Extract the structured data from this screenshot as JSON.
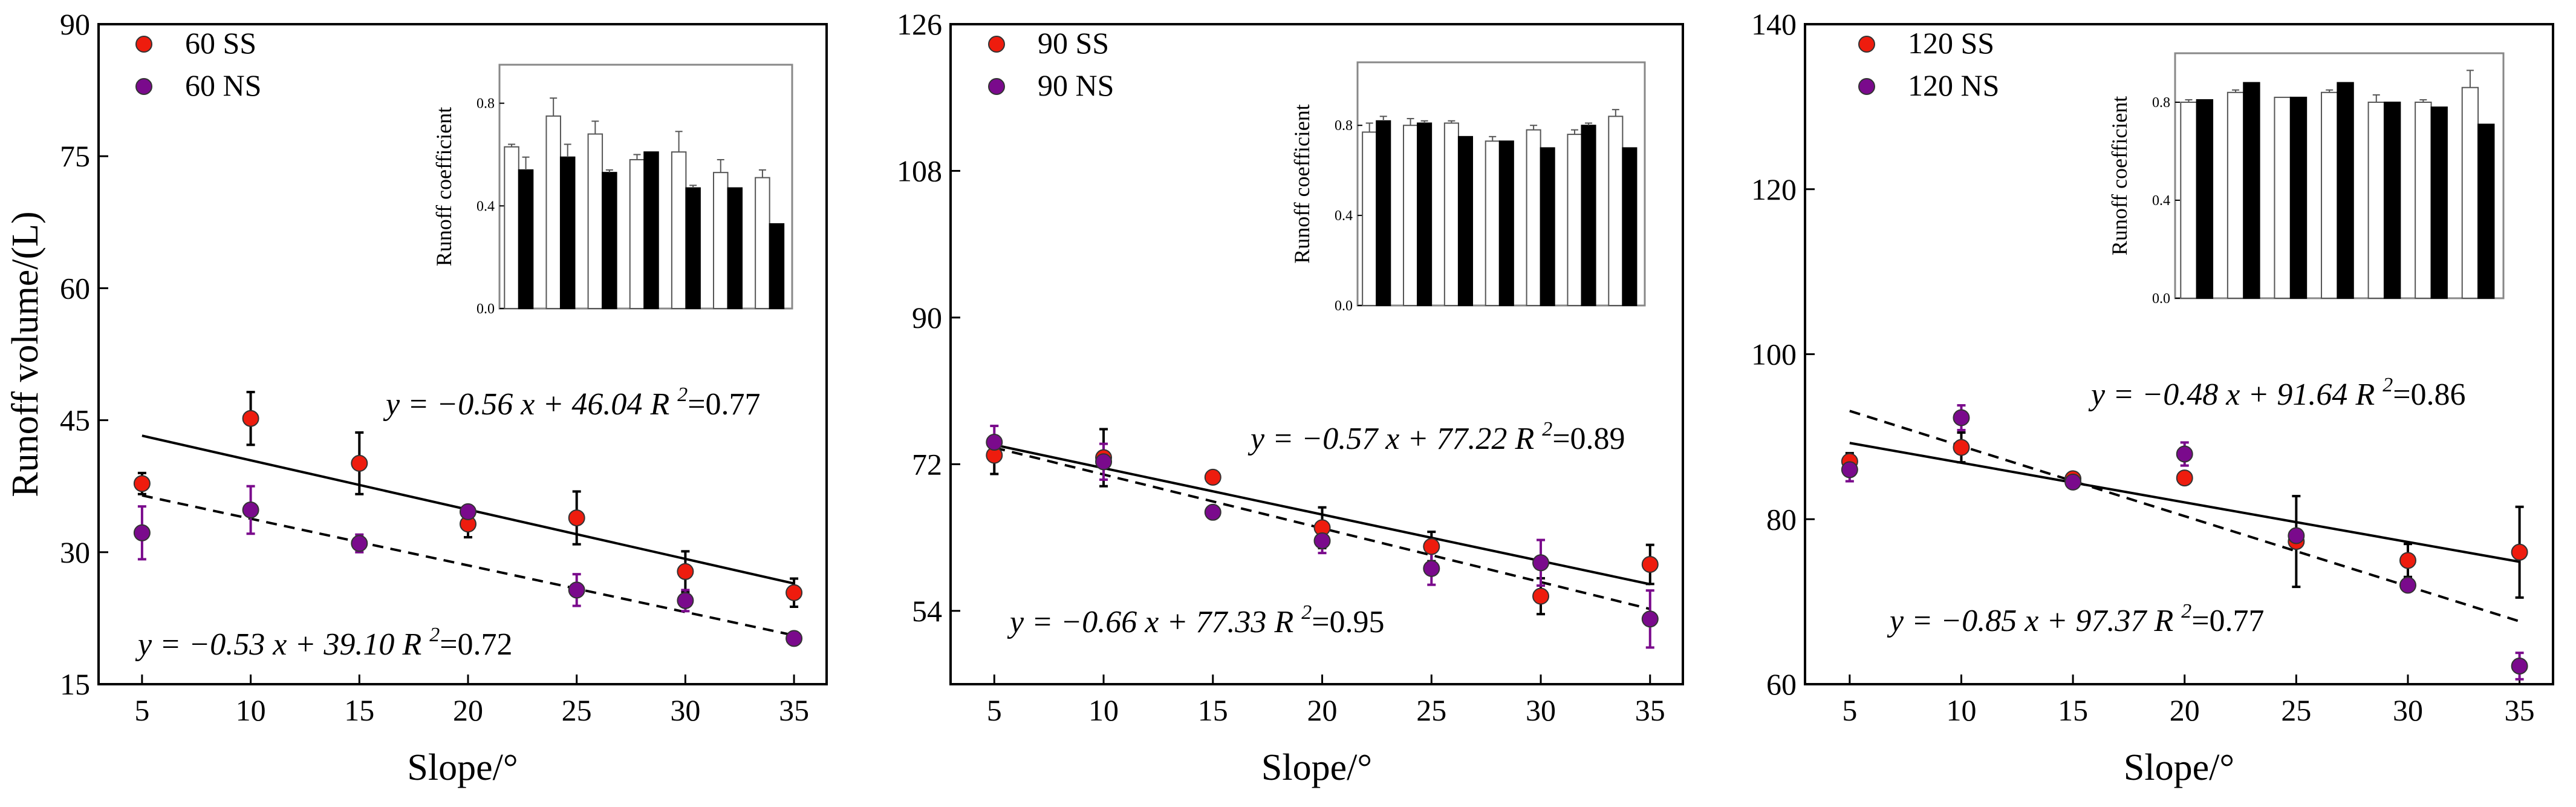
{
  "colors": {
    "ss": "#ee1c0e",
    "ns": "#7a0a8c",
    "bar_light": "#ffffff",
    "bar_dark": "#000000"
  },
  "chart_data": [
    {
      "type": "scatter",
      "xlabel": "Slope/°",
      "ylabel": "Runoff volume/(L)",
      "xticks": [
        5,
        10,
        15,
        20,
        25,
        30,
        35
      ],
      "xlim": [
        3,
        36.5
      ],
      "ylim": [
        15,
        90
      ],
      "yticks": [
        15,
        30,
        45,
        60,
        75,
        90
      ],
      "legend_position": "top-left",
      "series": [
        {
          "name": "60 SS",
          "color_key": "ss",
          "line": "solid",
          "x": [
            5,
            10,
            15,
            20,
            25,
            30,
            35
          ],
          "y": [
            37.8,
            45.2,
            40.1,
            33.2,
            33.9,
            27.8,
            25.4
          ],
          "err": [
            1.2,
            3.0,
            3.5,
            1.5,
            3.0,
            2.3,
            1.6
          ]
        },
        {
          "name": "60 NS",
          "color_key": "ns",
          "line": "dashed",
          "x": [
            5,
            10,
            15,
            20,
            25,
            30,
            35
          ],
          "y": [
            32.2,
            34.8,
            31.0,
            34.6,
            25.7,
            24.5,
            20.2
          ],
          "err": [
            3.0,
            2.7,
            1.0,
            0.6,
            1.8,
            1.2,
            0.4
          ]
        }
      ],
      "fits": [
        {
          "series": "60 SS",
          "line": "solid",
          "slope": -0.56,
          "intercept": 46.04,
          "equation": "y = −0.56 x + 46.04",
          "r2_label": "R",
          "r2_sup": "2",
          "r2_value": "=0.77"
        },
        {
          "series": "60 NS",
          "line": "dashed",
          "slope": -0.53,
          "intercept": 39.1,
          "equation": "y = −0.53 x + 39.10",
          "r2_label": "R",
          "r2_sup": "2",
          "r2_value": "=0.72"
        }
      ],
      "inset": {
        "type": "bar",
        "ylabel": "Runoff coefficient",
        "ylim": [
          0,
          0.95
        ],
        "yticks": [
          "0.0",
          "0.4",
          "0.8"
        ],
        "pairs": [
          {
            "light": 0.63,
            "dark": 0.54,
            "light_err": 0.01,
            "dark_err": 0.05
          },
          {
            "light": 0.75,
            "dark": 0.59,
            "light_err": 0.07,
            "dark_err": 0.05
          },
          {
            "light": 0.68,
            "dark": 0.53,
            "light_err": 0.05,
            "dark_err": 0.01
          },
          {
            "light": 0.58,
            "dark": 0.61,
            "light_err": 0.02,
            "dark_err": 0.0
          },
          {
            "light": 0.61,
            "dark": 0.47,
            "light_err": 0.08,
            "dark_err": 0.01
          },
          {
            "light": 0.53,
            "dark": 0.47,
            "light_err": 0.05,
            "dark_err": 0.0
          },
          {
            "light": 0.51,
            "dark": 0.33,
            "light_err": 0.03,
            "dark_err": 0.0
          }
        ]
      }
    },
    {
      "type": "scatter",
      "xlabel": "Slope/°",
      "ylabel": "",
      "xticks": [
        5,
        10,
        15,
        20,
        25,
        30,
        35
      ],
      "xlim": [
        3,
        36.5
      ],
      "ylim": [
        45,
        126
      ],
      "yticks": [
        54,
        72,
        90,
        108,
        126
      ],
      "legend_position": "top-left",
      "series": [
        {
          "name": "90 SS",
          "color_key": "ss",
          "line": "solid",
          "x": [
            5,
            10,
            15,
            20,
            25,
            30,
            35
          ],
          "y": [
            73.1,
            72.8,
            70.4,
            64.2,
            61.9,
            55.8,
            59.7
          ],
          "err": [
            2.3,
            3.5,
            0.5,
            2.5,
            1.8,
            2.2,
            2.4
          ]
        },
        {
          "name": "90 NS",
          "color_key": "ns",
          "line": "dashed",
          "x": [
            5,
            10,
            15,
            20,
            25,
            30,
            35
          ],
          "y": [
            74.7,
            72.3,
            66.1,
            62.6,
            59.2,
            59.9,
            53.0
          ],
          "err": [
            2.0,
            2.2,
            0.5,
            1.5,
            2.0,
            2.8,
            3.5
          ]
        }
      ],
      "fits": [
        {
          "series": "90 SS",
          "line": "solid",
          "slope": -0.57,
          "intercept": 77.22,
          "equation": "y = −0.57 x + 77.22",
          "r2_label": "R",
          "r2_sup": "2",
          "r2_value": "=0.89"
        },
        {
          "series": "90 NS",
          "line": "dashed",
          "slope": -0.66,
          "intercept": 77.33,
          "equation": "y = −0.66 x + 77.33",
          "r2_label": "R",
          "r2_sup": "2",
          "r2_value": "=0.95"
        }
      ],
      "inset": {
        "type": "bar",
        "ylabel": "Runoff coefficient",
        "ylim": [
          0,
          1.08
        ],
        "yticks": [
          "0.0",
          "0.4",
          "0.8"
        ],
        "pairs": [
          {
            "light": 0.77,
            "dark": 0.82,
            "light_err": 0.04,
            "dark_err": 0.02
          },
          {
            "light": 0.8,
            "dark": 0.81,
            "light_err": 0.03,
            "dark_err": 0.01
          },
          {
            "light": 0.81,
            "dark": 0.75,
            "light_err": 0.01,
            "dark_err": 0.0
          },
          {
            "light": 0.73,
            "dark": 0.73,
            "light_err": 0.02,
            "dark_err": 0.0
          },
          {
            "light": 0.78,
            "dark": 0.7,
            "light_err": 0.02,
            "dark_err": 0.0
          },
          {
            "light": 0.76,
            "dark": 0.8,
            "light_err": 0.02,
            "dark_err": 0.01
          },
          {
            "light": 0.84,
            "dark": 0.7,
            "light_err": 0.03,
            "dark_err": 0.0
          }
        ]
      }
    },
    {
      "type": "scatter",
      "xlabel": "Slope/°",
      "ylabel": "",
      "xticks": [
        5,
        10,
        15,
        20,
        25,
        30,
        35
      ],
      "xlim": [
        3,
        36.5
      ],
      "ylim": [
        60,
        140
      ],
      "yticks": [
        60,
        80,
        100,
        120,
        140
      ],
      "legend_position": "top-left",
      "series": [
        {
          "name": "120 SS",
          "color_key": "ss",
          "line": "solid",
          "x": [
            5,
            10,
            15,
            20,
            25,
            30,
            35
          ],
          "y": [
            87.0,
            88.7,
            84.9,
            85.0,
            77.3,
            75.0,
            76.0
          ],
          "err": [
            1.0,
            1.8,
            0.4,
            0.4,
            5.5,
            2.0,
            5.5
          ]
        },
        {
          "name": "120 NS",
          "color_key": "ns",
          "line": "dashed",
          "x": [
            5,
            10,
            15,
            20,
            25,
            30,
            35
          ],
          "y": [
            86.0,
            92.3,
            84.5,
            87.9,
            78.0,
            72.0,
            62.2
          ],
          "err": [
            1.4,
            1.5,
            0.3,
            1.4,
            0.5,
            0.3,
            1.6
          ]
        }
      ],
      "fits": [
        {
          "series": "120 SS",
          "line": "solid",
          "slope": -0.48,
          "intercept": 91.64,
          "equation": "y = −0.48 x + 91.64",
          "r2_label": "R",
          "r2_sup": "2",
          "r2_value": "=0.86"
        },
        {
          "series": "120 NS",
          "line": "dashed",
          "slope": -0.85,
          "intercept": 97.37,
          "equation": "y = −0.85 x + 97.37",
          "r2_label": "R",
          "r2_sup": "2",
          "r2_value": "=0.77"
        }
      ],
      "inset": {
        "type": "bar",
        "ylabel": "Runoff coefficient",
        "ylim": [
          0,
          1.0
        ],
        "yticks": [
          "0.0",
          "0.4",
          "0.8"
        ],
        "pairs": [
          {
            "light": 0.8,
            "dark": 0.81,
            "light_err": 0.01,
            "dark_err": 0.0
          },
          {
            "light": 0.84,
            "dark": 0.88,
            "light_err": 0.01,
            "dark_err": 0.0
          },
          {
            "light": 0.82,
            "dark": 0.82,
            "light_err": 0.0,
            "dark_err": 0.0
          },
          {
            "light": 0.84,
            "dark": 0.88,
            "light_err": 0.01,
            "dark_err": 0.0
          },
          {
            "light": 0.8,
            "dark": 0.8,
            "light_err": 0.03,
            "dark_err": 0.0
          },
          {
            "light": 0.8,
            "dark": 0.78,
            "light_err": 0.01,
            "dark_err": 0.0
          },
          {
            "light": 0.86,
            "dark": 0.71,
            "light_err": 0.07,
            "dark_err": 0.0
          }
        ]
      }
    }
  ]
}
